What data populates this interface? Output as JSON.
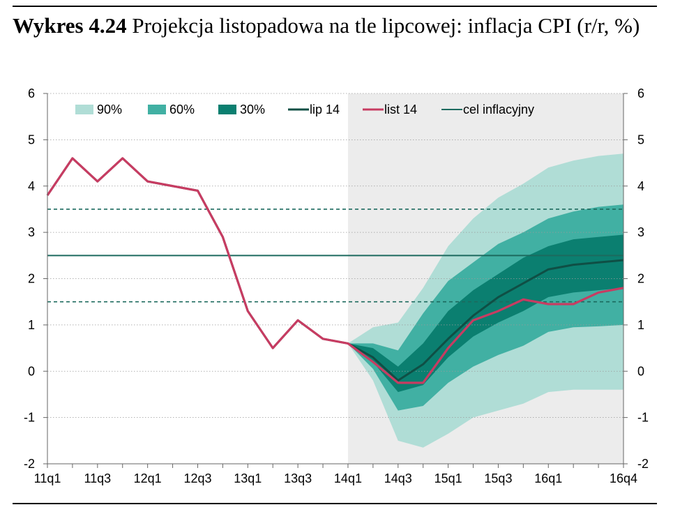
{
  "title": {
    "number": "Wykres 4.24",
    "text": "Projekcja listopadowa na tle lipcowej: inflacja CPI (r/r, %)"
  },
  "colors": {
    "band90": "#b0ddd6",
    "band60": "#41b0a3",
    "band30": "#0b7f70",
    "lip14": "#0f4f45",
    "list14": "#c73c62",
    "target": "#1c6a5e",
    "projection_bg": "#ececec"
  },
  "chart_data": {
    "type": "line",
    "x": [
      "11q1",
      "11q2",
      "11q3",
      "11q4",
      "12q1",
      "12q2",
      "12q3",
      "12q4",
      "13q1",
      "13q2",
      "13q3",
      "13q4",
      "14q1",
      "14q2",
      "14q3",
      "14q4",
      "15q1",
      "15q2",
      "15q3",
      "15q4",
      "16q1",
      "16q2",
      "16q3",
      "16q4"
    ],
    "x_tick_labels": [
      "11q1",
      "11q3",
      "12q1",
      "12q3",
      "13q1",
      "13q3",
      "14q1",
      "14q3",
      "15q1",
      "15q3",
      "16q1",
      "16q4"
    ],
    "ylim": [
      -2,
      6
    ],
    "y_ticks": [
      "-2",
      "-1",
      "0",
      "1",
      "2",
      "3",
      "4",
      "5",
      "6"
    ],
    "projection_start": "14q1",
    "series": [
      {
        "name": "lip 14",
        "values": [
          3.8,
          4.6,
          4.1,
          4.6,
          4.1,
          4.0,
          3.9,
          2.9,
          1.3,
          0.5,
          1.1,
          0.7,
          0.6,
          0.3,
          -0.2,
          0.15,
          0.7,
          1.2,
          1.6,
          1.9,
          2.2,
          2.3,
          2.35,
          2.4
        ]
      },
      {
        "name": "list 14",
        "values": [
          3.8,
          4.6,
          4.1,
          4.6,
          4.1,
          4.0,
          3.9,
          2.9,
          1.3,
          0.5,
          1.1,
          0.7,
          0.6,
          0.2,
          -0.25,
          -0.25,
          0.5,
          1.1,
          1.3,
          1.55,
          1.45,
          1.45,
          1.7,
          1.8
        ]
      }
    ],
    "fan": {
      "x_start": "14q1",
      "bands": [
        {
          "name": "90%",
          "upper": [
            0.6,
            0.95,
            1.05,
            1.8,
            2.7,
            3.3,
            3.75,
            4.05,
            4.4,
            4.55,
            4.65,
            4.7
          ],
          "lower": [
            0.6,
            -0.2,
            -1.5,
            -1.65,
            -1.35,
            -1.0,
            -0.85,
            -0.7,
            -0.45,
            -0.4,
            -0.4,
            -0.4
          ]
        },
        {
          "name": "60%",
          "upper": [
            0.6,
            0.6,
            0.45,
            1.25,
            1.95,
            2.35,
            2.75,
            3.0,
            3.3,
            3.45,
            3.55,
            3.6
          ],
          "lower": [
            0.6,
            0.05,
            -0.85,
            -0.75,
            -0.25,
            0.1,
            0.35,
            0.55,
            0.85,
            0.95,
            0.97,
            1.0
          ]
        },
        {
          "name": "30%",
          "upper": [
            0.6,
            0.5,
            0.1,
            0.6,
            1.3,
            1.75,
            2.1,
            2.45,
            2.7,
            2.85,
            2.9,
            2.95
          ],
          "lower": [
            0.6,
            0.2,
            -0.45,
            -0.3,
            0.3,
            0.75,
            1.05,
            1.3,
            1.6,
            1.7,
            1.75,
            1.8
          ]
        }
      ]
    },
    "reference_lines": [
      {
        "name": "cel inflacyjny",
        "y": 2.5,
        "style": "solid"
      },
      {
        "y": 3.5,
        "style": "dashed"
      },
      {
        "y": 1.5,
        "style": "dashed"
      }
    ],
    "legend": {
      "placement": "top",
      "entries": [
        {
          "label": "90%",
          "kind": "patch",
          "color": "#b0ddd6"
        },
        {
          "label": "60%",
          "kind": "patch",
          "color": "#41b0a3"
        },
        {
          "label": "30%",
          "kind": "patch",
          "color": "#0b7f70"
        },
        {
          "label": "lip 14",
          "kind": "line",
          "color": "#0f4f45"
        },
        {
          "label": "list 14",
          "kind": "line",
          "color": "#c73c62"
        },
        {
          "label": "cel inflacyjny",
          "kind": "line",
          "color": "#1c6a5e"
        }
      ]
    }
  }
}
